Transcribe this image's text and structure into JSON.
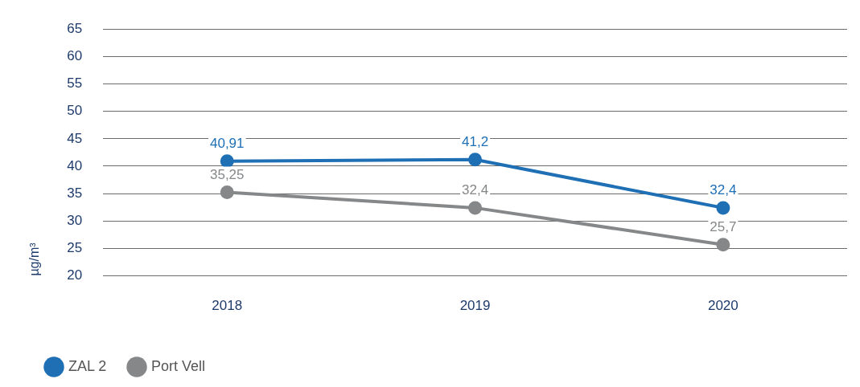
{
  "chart_data": {
    "type": "line",
    "ylabel": "µg/m³",
    "categories": [
      "2018",
      "2019",
      "2020"
    ],
    "series": [
      {
        "name": "ZAL 2",
        "color": "#1f6fb5",
        "values": [
          40.91,
          41.2,
          32.4
        ],
        "value_labels": [
          "40,91",
          "41,2",
          "32,4"
        ]
      },
      {
        "name": "Port Vell",
        "color": "#858789",
        "values": [
          35.25,
          32.4,
          25.7
        ],
        "value_labels": [
          "35,25",
          "32,4",
          "25,7"
        ]
      }
    ],
    "ylim": [
      20,
      65
    ],
    "yticks": [
      20,
      25,
      30,
      35,
      40,
      45,
      50,
      55,
      60,
      65
    ],
    "grid": "y",
    "legend": "bottom left",
    "marker": "circle",
    "line_style": "solid"
  }
}
